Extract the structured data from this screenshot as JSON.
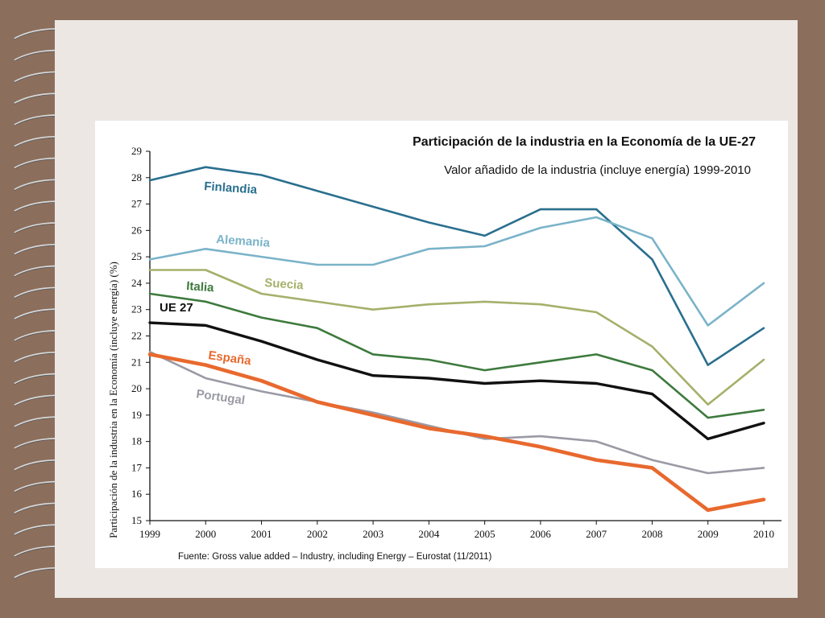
{
  "chart_data": {
    "type": "line",
    "title": "Participación de la industria en la Economía de la UE-27",
    "subtitle": "Valor añadido de la industria (incluye energía)  1999-2010",
    "ylabel": "Participación de la industria en la Economía (incluye energía) (%)",
    "xlabel": "",
    "source": "Fuente: Gross value added – Industry, including Energy – Eurostat (11/2011)",
    "ylim": [
      15,
      29
    ],
    "yticks": [
      "15",
      "16",
      "17",
      "18",
      "19",
      "20",
      "21",
      "22",
      "23",
      "24",
      "25",
      "26",
      "27",
      "28",
      "29"
    ],
    "x": [
      "1999",
      "2000",
      "2001",
      "2002",
      "2003",
      "2004",
      "2005",
      "2006",
      "2007",
      "2008",
      "2009",
      "2010"
    ],
    "grid": false,
    "series": [
      {
        "name": "Finlandia",
        "color": "#2a6f8e",
        "width": 2.6,
        "values": [
          27.9,
          28.4,
          28.1,
          27.5,
          26.9,
          26.3,
          25.8,
          26.8,
          26.8,
          24.9,
          20.9,
          22.3
        ]
      },
      {
        "name": "Alemania",
        "color": "#7ab3c9",
        "width": 2.6,
        "values": [
          24.9,
          25.3,
          25.0,
          24.7,
          24.7,
          25.3,
          25.4,
          26.1,
          26.5,
          25.7,
          22.4,
          24.0
        ]
      },
      {
        "name": "Suecia",
        "color": "#a5b06a",
        "width": 2.6,
        "values": [
          24.5,
          24.5,
          23.6,
          23.3,
          23.0,
          23.2,
          23.3,
          23.2,
          22.9,
          21.6,
          19.4,
          21.1
        ]
      },
      {
        "name": "Italia",
        "color": "#3d7a3d",
        "width": 2.6,
        "values": [
          23.6,
          23.3,
          22.7,
          22.3,
          21.3,
          21.1,
          20.7,
          21.0,
          21.3,
          20.7,
          18.9,
          19.2
        ]
      },
      {
        "name": "UE 27",
        "color": "#111111",
        "width": 3.4,
        "values": [
          22.5,
          22.4,
          21.8,
          21.1,
          20.5,
          20.4,
          20.2,
          20.3,
          20.2,
          19.8,
          18.1,
          18.7
        ]
      },
      {
        "name": "Portugal",
        "color": "#9a9aa5",
        "width": 2.6,
        "values": [
          21.4,
          20.4,
          19.9,
          19.5,
          19.1,
          18.6,
          18.1,
          18.2,
          18.0,
          17.3,
          16.8,
          17.0
        ]
      },
      {
        "name": "España",
        "color": "#e8692e",
        "width": 4.6,
        "values": [
          21.3,
          20.9,
          20.3,
          19.5,
          19.0,
          18.5,
          18.2,
          17.8,
          17.3,
          17.0,
          15.4,
          15.8
        ]
      }
    ]
  }
}
